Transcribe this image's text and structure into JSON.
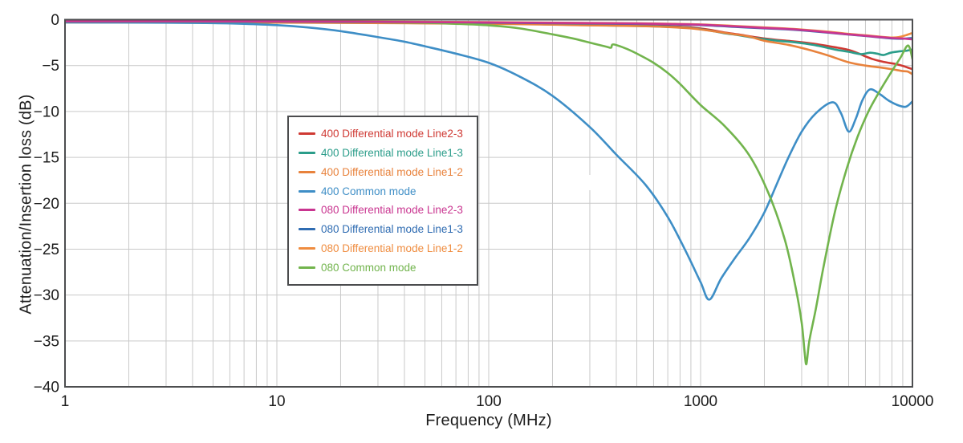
{
  "chart_data": {
    "type": "line",
    "title": "",
    "xlabel": "Frequency (MHz)",
    "ylabel": "Attenuation/Insertion loss (dB)",
    "x_scale": "log",
    "xlim": [
      1,
      10000
    ],
    "ylim": [
      -40,
      0
    ],
    "x_ticks": [
      1,
      10,
      100,
      1000,
      10000
    ],
    "x_tick_labels": [
      "1",
      "10",
      "100",
      "1000",
      "10000"
    ],
    "y_ticks": [
      0,
      -5,
      -10,
      -15,
      -20,
      -25,
      -30,
      -35,
      -40
    ],
    "y_tick_labels": [
      "0",
      "−5",
      "−10",
      "−15",
      "−20",
      "−25",
      "−30",
      "−35",
      "−40"
    ],
    "grid": true,
    "grid_color": "#c9c9c9",
    "border_color": "#4d4e50",
    "tick_label_color": "#1c1c1c",
    "legend_position": "upper-left-of-center",
    "draw_order": [
      0,
      1,
      2,
      3,
      6,
      5,
      7,
      4
    ],
    "series": [
      {
        "name": "400 Differential mode Line2-3",
        "color": "#cf3933",
        "points": [
          [
            1,
            -0.25
          ],
          [
            3,
            -0.25
          ],
          [
            10,
            -0.27
          ],
          [
            30,
            -0.3
          ],
          [
            60,
            -0.33
          ],
          [
            100,
            -0.38
          ],
          [
            150,
            -0.42
          ],
          [
            200,
            -0.48
          ],
          [
            300,
            -0.55
          ],
          [
            400,
            -0.6
          ],
          [
            500,
            -0.62
          ],
          [
            600,
            -0.68
          ],
          [
            700,
            -0.72
          ],
          [
            900,
            -0.85
          ],
          [
            1100,
            -1.1
          ],
          [
            1300,
            -1.4
          ],
          [
            1500,
            -1.6
          ],
          [
            1800,
            -1.9
          ],
          [
            2100,
            -2.1
          ],
          [
            2400,
            -2.25
          ],
          [
            2700,
            -2.35
          ],
          [
            3100,
            -2.5
          ],
          [
            3600,
            -2.7
          ],
          [
            4300,
            -3.0
          ],
          [
            5000,
            -3.3
          ],
          [
            5600,
            -3.7
          ],
          [
            6000,
            -4.0
          ],
          [
            6500,
            -4.3
          ],
          [
            7000,
            -4.5
          ],
          [
            7700,
            -4.7
          ],
          [
            8400,
            -4.85
          ],
          [
            9200,
            -5.1
          ],
          [
            10000,
            -5.4
          ]
        ]
      },
      {
        "name": "400 Differential mode Line1-3",
        "color": "#2b9d8a",
        "points": [
          [
            1,
            -0.28
          ],
          [
            10,
            -0.3
          ],
          [
            100,
            -0.42
          ],
          [
            200,
            -0.52
          ],
          [
            300,
            -0.6
          ],
          [
            500,
            -0.68
          ],
          [
            700,
            -0.78
          ],
          [
            900,
            -0.92
          ],
          [
            1100,
            -1.18
          ],
          [
            1300,
            -1.48
          ],
          [
            1500,
            -1.68
          ],
          [
            1800,
            -1.98
          ],
          [
            2100,
            -2.18
          ],
          [
            2400,
            -2.33
          ],
          [
            2700,
            -2.43
          ],
          [
            3100,
            -2.6
          ],
          [
            3600,
            -2.85
          ],
          [
            4300,
            -3.25
          ],
          [
            5000,
            -3.5
          ],
          [
            5700,
            -3.75
          ],
          [
            6300,
            -3.6
          ],
          [
            6800,
            -3.7
          ],
          [
            7300,
            -3.85
          ],
          [
            7900,
            -3.6
          ],
          [
            8700,
            -3.45
          ],
          [
            9300,
            -3.4
          ],
          [
            10000,
            -3.25
          ]
        ]
      },
      {
        "name": "400 Differential mode Line1-2",
        "color": "#e8823c",
        "points": [
          [
            1,
            -0.3
          ],
          [
            10,
            -0.32
          ],
          [
            100,
            -0.45
          ],
          [
            300,
            -0.62
          ],
          [
            500,
            -0.7
          ],
          [
            700,
            -0.8
          ],
          [
            900,
            -0.95
          ],
          [
            1100,
            -1.2
          ],
          [
            1400,
            -1.55
          ],
          [
            1700,
            -1.85
          ],
          [
            2000,
            -2.3
          ],
          [
            2600,
            -2.75
          ],
          [
            3200,
            -3.25
          ],
          [
            4000,
            -3.9
          ],
          [
            5000,
            -4.65
          ],
          [
            6000,
            -5.0
          ],
          [
            7000,
            -5.2
          ],
          [
            8000,
            -5.4
          ],
          [
            9000,
            -5.6
          ],
          [
            9500,
            -5.65
          ],
          [
            10000,
            -5.95
          ]
        ]
      },
      {
        "name": "400 Common mode",
        "color": "#3e8ec6",
        "points": [
          [
            1,
            -0.3
          ],
          [
            3,
            -0.33
          ],
          [
            5,
            -0.38
          ],
          [
            7,
            -0.45
          ],
          [
            10,
            -0.6
          ],
          [
            14,
            -0.85
          ],
          [
            20,
            -1.25
          ],
          [
            30,
            -1.9
          ],
          [
            40,
            -2.4
          ],
          [
            50,
            -2.9
          ],
          [
            70,
            -3.7
          ],
          [
            100,
            -4.7
          ],
          [
            140,
            -6.2
          ],
          [
            200,
            -8.3
          ],
          [
            300,
            -11.7
          ],
          [
            400,
            -14.7
          ],
          [
            550,
            -18.0
          ],
          [
            700,
            -21.5
          ],
          [
            850,
            -25.2
          ],
          [
            1000,
            -28.6
          ],
          [
            1100,
            -30.5
          ],
          [
            1250,
            -28.2
          ],
          [
            1450,
            -26.0
          ],
          [
            1700,
            -23.8
          ],
          [
            2000,
            -21.0
          ],
          [
            2300,
            -17.8
          ],
          [
            2600,
            -15.0
          ],
          [
            3000,
            -12.2
          ],
          [
            3500,
            -10.2
          ],
          [
            4200,
            -9.0
          ],
          [
            4600,
            -10.2
          ],
          [
            5000,
            -12.2
          ],
          [
            5400,
            -10.8
          ],
          [
            5800,
            -8.8
          ],
          [
            6300,
            -7.6
          ],
          [
            7000,
            -8.1
          ],
          [
            7700,
            -8.8
          ],
          [
            8500,
            -9.3
          ],
          [
            9200,
            -9.5
          ],
          [
            9600,
            -9.3
          ],
          [
            10000,
            -8.9
          ]
        ]
      },
      {
        "name": "080 Differential mode Line2-3",
        "color": "#c93590",
        "points": [
          [
            1,
            -0.18
          ],
          [
            10,
            -0.2
          ],
          [
            100,
            -0.3
          ],
          [
            300,
            -0.38
          ],
          [
            500,
            -0.42
          ],
          [
            700,
            -0.47
          ],
          [
            1000,
            -0.55
          ],
          [
            1500,
            -0.75
          ],
          [
            2000,
            -0.9
          ],
          [
            2500,
            -1.0
          ],
          [
            3000,
            -1.12
          ],
          [
            4000,
            -1.38
          ],
          [
            5000,
            -1.6
          ],
          [
            6000,
            -1.75
          ],
          [
            7000,
            -1.9
          ],
          [
            8000,
            -2.0
          ],
          [
            9000,
            -2.05
          ],
          [
            10000,
            -2.15
          ]
        ]
      },
      {
        "name": "080 Differential mode Line1-3",
        "color": "#2f6cb2",
        "points": [
          [
            1,
            -0.22
          ],
          [
            10,
            -0.24
          ],
          [
            100,
            -0.33
          ],
          [
            300,
            -0.42
          ],
          [
            500,
            -0.46
          ],
          [
            700,
            -0.51
          ],
          [
            1000,
            -0.6
          ],
          [
            1500,
            -0.8
          ],
          [
            2000,
            -0.95
          ],
          [
            2500,
            -1.05
          ],
          [
            3000,
            -1.17
          ],
          [
            4000,
            -1.42
          ],
          [
            5000,
            -1.63
          ],
          [
            6000,
            -1.78
          ],
          [
            7000,
            -1.93
          ],
          [
            8000,
            -2.05
          ],
          [
            9000,
            -2.08
          ],
          [
            10000,
            -2.0
          ]
        ]
      },
      {
        "name": "080 Differential mode Line1-2",
        "color": "#ef8c3f",
        "points": [
          [
            1,
            -0.15
          ],
          [
            10,
            -0.17
          ],
          [
            100,
            -0.27
          ],
          [
            300,
            -0.35
          ],
          [
            500,
            -0.39
          ],
          [
            700,
            -0.44
          ],
          [
            1000,
            -0.52
          ],
          [
            1500,
            -0.7
          ],
          [
            2000,
            -0.85
          ],
          [
            2500,
            -0.95
          ],
          [
            3000,
            -1.07
          ],
          [
            4000,
            -1.32
          ],
          [
            5000,
            -1.55
          ],
          [
            6000,
            -1.7
          ],
          [
            7000,
            -1.85
          ],
          [
            8000,
            -1.95
          ],
          [
            8600,
            -1.9
          ],
          [
            9300,
            -1.7
          ],
          [
            10000,
            -1.45
          ]
        ]
      },
      {
        "name": "080 Common mode",
        "color": "#72b44d",
        "points": [
          [
            1,
            -0.2
          ],
          [
            10,
            -0.22
          ],
          [
            30,
            -0.28
          ],
          [
            50,
            -0.35
          ],
          [
            70,
            -0.45
          ],
          [
            100,
            -0.62
          ],
          [
            140,
            -0.95
          ],
          [
            200,
            -1.6
          ],
          [
            250,
            -2.05
          ],
          [
            300,
            -2.5
          ],
          [
            360,
            -2.95
          ],
          [
            378,
            -3.05
          ],
          [
            388,
            -2.7
          ],
          [
            450,
            -3.2
          ],
          [
            520,
            -3.9
          ],
          [
            600,
            -4.7
          ],
          [
            700,
            -5.8
          ],
          [
            800,
            -7.0
          ],
          [
            1000,
            -9.3
          ],
          [
            1300,
            -11.6
          ],
          [
            1700,
            -14.8
          ],
          [
            2100,
            -19.0
          ],
          [
            2500,
            -24.0
          ],
          [
            2800,
            -29.0
          ],
          [
            3000,
            -33.0
          ],
          [
            3100,
            -36.3
          ],
          [
            3160,
            -37.5
          ],
          [
            3260,
            -35.0
          ],
          [
            3500,
            -31.5
          ],
          [
            3800,
            -27.0
          ],
          [
            4300,
            -21.0
          ],
          [
            4900,
            -16.2
          ],
          [
            5500,
            -12.8
          ],
          [
            6200,
            -10.0
          ],
          [
            7000,
            -7.8
          ],
          [
            8000,
            -5.6
          ],
          [
            8800,
            -4.1
          ],
          [
            9400,
            -2.9
          ],
          [
            9700,
            -3.05
          ],
          [
            10000,
            -4.3
          ]
        ]
      }
    ]
  }
}
